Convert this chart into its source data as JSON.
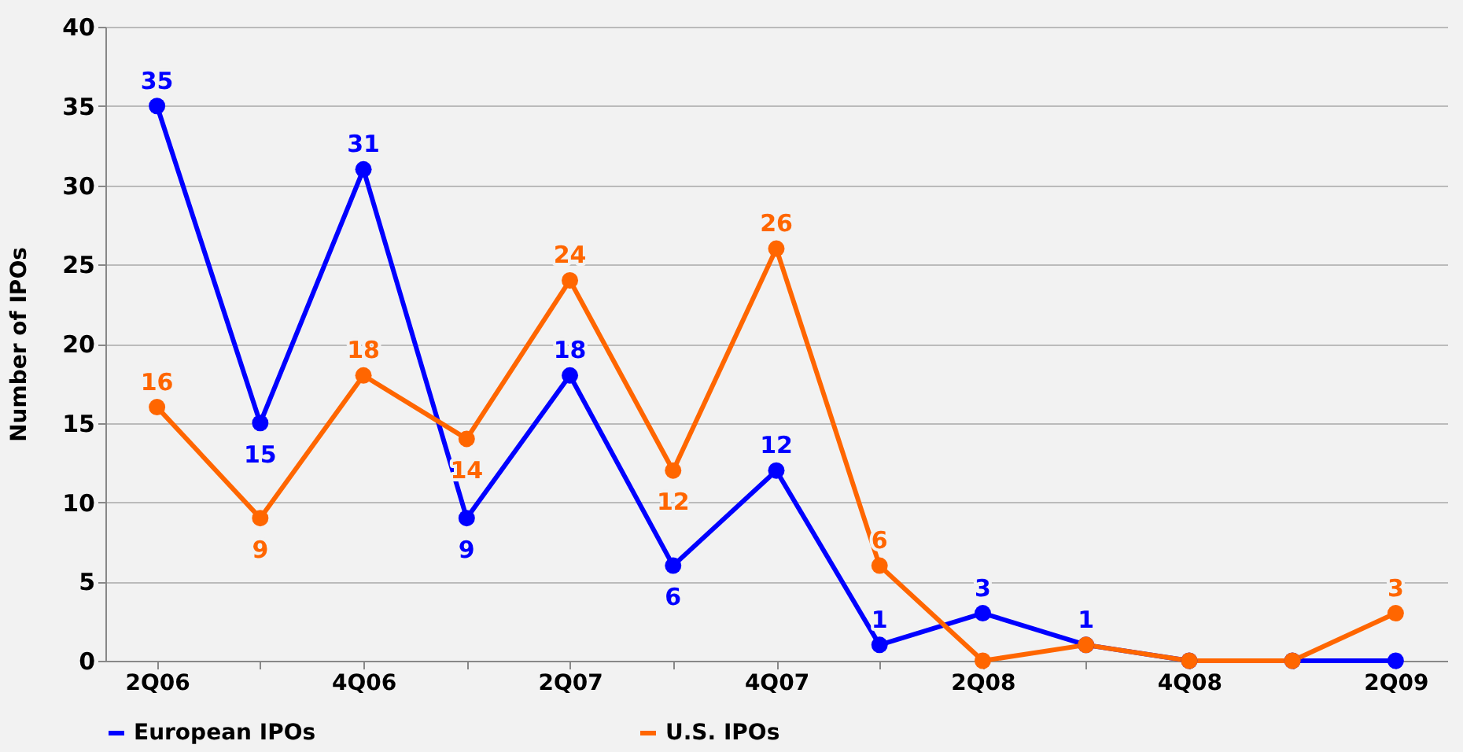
{
  "chart_data": {
    "type": "line",
    "ylabel": "Number of IPOs",
    "categories": [
      "2Q06",
      null,
      "4Q06",
      null,
      "2Q07",
      null,
      "4Q07",
      null,
      "2Q08",
      null,
      "4Q08",
      null,
      "2Q09"
    ],
    "series": [
      {
        "name": "European IPOs",
        "color": "#0000ff",
        "values": [
          35,
          15,
          31,
          9,
          18,
          6,
          12,
          1,
          3,
          1,
          0,
          0,
          0
        ],
        "value_labels": [
          "35",
          "15",
          "31",
          "9",
          "18",
          "6",
          "12",
          "1",
          "3",
          "1",
          null,
          null,
          null
        ]
      },
      {
        "name": "U.S. IPOs",
        "color": "#ff6600",
        "values": [
          16,
          9,
          18,
          14,
          24,
          12,
          26,
          6,
          0,
          1,
          0,
          0,
          3
        ],
        "value_labels": [
          "16",
          "9",
          "18",
          "14",
          "24",
          "12",
          "26",
          "6",
          null,
          null,
          null,
          null,
          "3"
        ]
      }
    ],
    "ylim": [
      0,
      40
    ],
    "yticks": [
      0,
      5,
      10,
      15,
      20,
      25,
      30,
      35,
      40
    ],
    "grid": "y",
    "legend": "bottom",
    "marker": "circle",
    "line_style": "solid"
  }
}
